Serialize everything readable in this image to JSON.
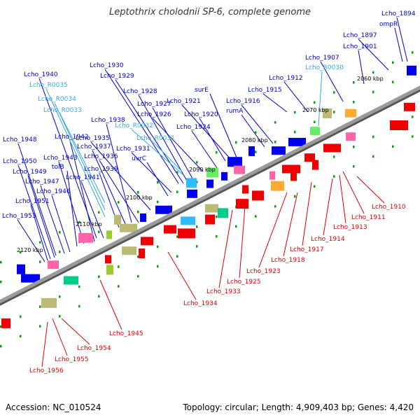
{
  "title": "Leptothrix cholodnii SP-6, complete genome",
  "footer": {
    "accession": "Accession: NC_010524",
    "summary": "Topology: circular; Length: 4,909,403 bp; Genes: 4,420"
  },
  "map": {
    "colors": {
      "forward_label": "#0000cc",
      "reverse_label": "#dd0000",
      "rna_label": "#33aadd",
      "backbone": "#888888"
    },
    "ticks": [
      "2060 kbp",
      "2070 kbp",
      "2080 kbp",
      "2090 kbp",
      "2100 kbp",
      "2110 kbp",
      "2120 kbp"
    ],
    "forward_labels": [
      "Lcho_1894",
      "ompR",
      "Lcho_1897",
      "Lcho_1901",
      "Lcho_1907",
      "Lcho_1912",
      "Lcho_1915",
      "Lcho_1916",
      "rumA",
      "surE",
      "Lcho_1921",
      "Lcho_1920",
      "Lcho_1924",
      "Lcho_1926",
      "Lcho_1927",
      "Lcho_1928",
      "Lcho_1929",
      "Lcho_1930",
      "Lcho_1931",
      "uvrC",
      "Lcho_1935",
      "Lcho_1936",
      "Lcho_1937",
      "Lcho_1938",
      "Lcho_1939",
      "Lcho_1940",
      "Lcho_1941",
      "Lcho_1942",
      "Lcho_1943",
      "tolB",
      "Lcho_1946",
      "Lcho_1947",
      "Lcho_1948",
      "Lcho_1949",
      "Lcho_1950",
      "Lcho_1951",
      "Lcho_1953"
    ],
    "rna_labels": [
      "Lcho_R0030",
      "Lcho_R0031",
      "Lcho_R0032",
      "Lcho_R0033",
      "Lcho_R0034",
      "Lcho_R0035"
    ],
    "reverse_labels": [
      "Lcho_1910",
      "Lcho_1911",
      "Lcho_1913",
      "Lcho_1914",
      "Lcho_1917",
      "Lcho_1918",
      "Lcho_1923",
      "Lcho_1925",
      "Lcho_1933",
      "Lcho_1934",
      "Lcho_1945",
      "Lcho_1954",
      "Lcho_1955",
      "Lcho_1956"
    ]
  }
}
